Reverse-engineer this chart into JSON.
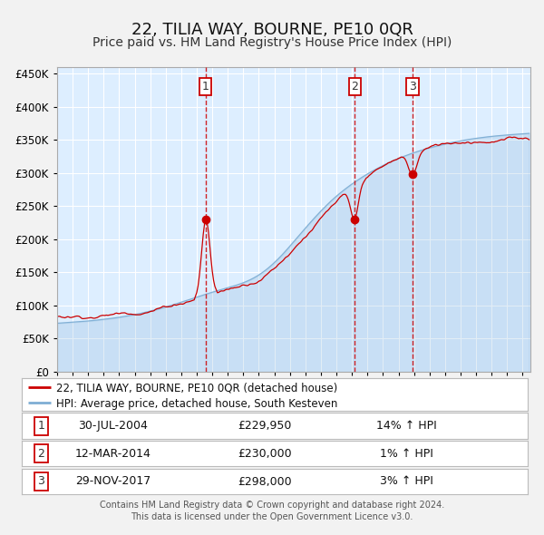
{
  "title": "22, TILIA WAY, BOURNE, PE10 0QR",
  "subtitle": "Price paid vs. HM Land Registry's House Price Index (HPI)",
  "background_color": "#ddeeff",
  "grid_color": "#ffffff",
  "hpi_color": "#7eaed4",
  "price_color": "#cc0000",
  "ylim": [
    0,
    460000
  ],
  "yticks": [
    0,
    50000,
    100000,
    150000,
    200000,
    250000,
    300000,
    350000,
    400000,
    450000
  ],
  "year_start": 1995,
  "year_end": 2025,
  "transactions": [
    {
      "label": "1",
      "date": "30-JUL-2004",
      "price": 229950,
      "pct": "14%",
      "dir": "↑",
      "year_float": 2004.57
    },
    {
      "label": "2",
      "date": "12-MAR-2014",
      "price": 230000,
      "pct": "1%",
      "dir": "↑",
      "year_float": 2014.19
    },
    {
      "label": "3",
      "date": "29-NOV-2017",
      "price": 298000,
      "pct": "3%",
      "dir": "↑",
      "year_float": 2017.91
    }
  ],
  "legend_line1": "22, TILIA WAY, BOURNE, PE10 0QR (detached house)",
  "legend_line2": "HPI: Average price, detached house, South Kesteven",
  "footnote1": "Contains HM Land Registry data © Crown copyright and database right 2024.",
  "footnote2": "This data is licensed under the Open Government Licence v3.0.",
  "title_fontsize": 13,
  "subtitle_fontsize": 10,
  "tick_fontsize": 8.5
}
